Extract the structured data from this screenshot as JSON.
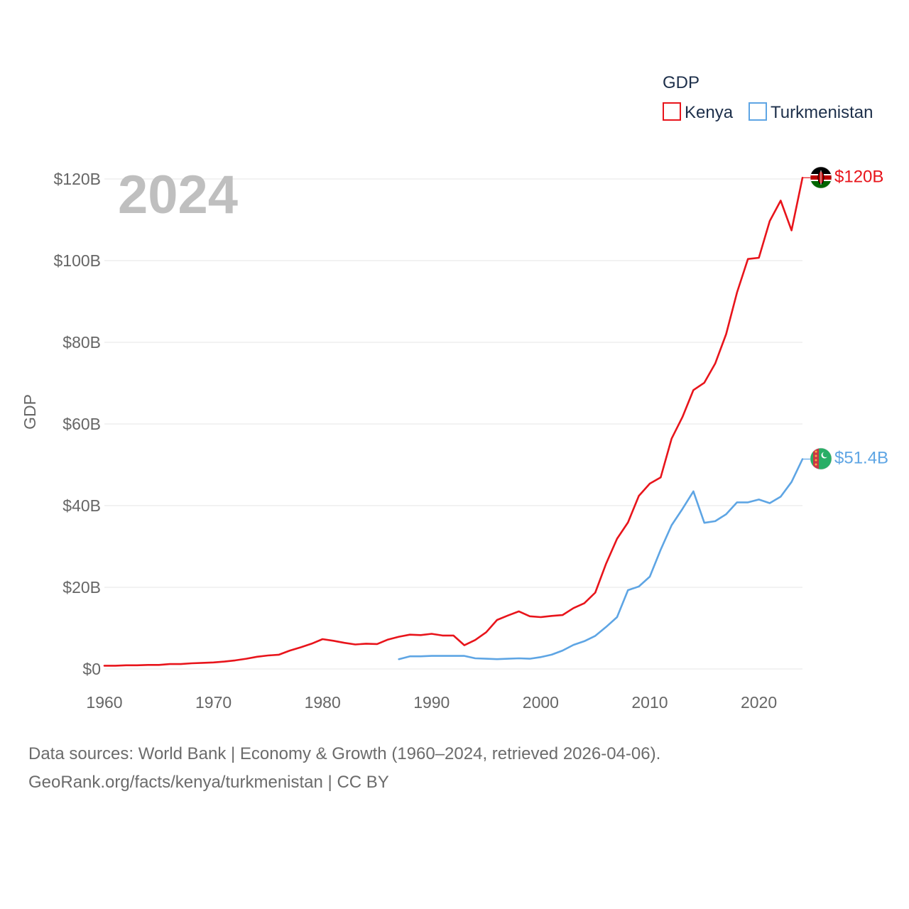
{
  "colors": {
    "kenya": "#e8141b",
    "turkmenistan": "#5ea5e4",
    "grid": "#e6e6e6",
    "axis_text": "#666666",
    "year_watermark": "#bfbfbf"
  },
  "legend": {
    "title": "GDP",
    "items": [
      {
        "name": "Kenya",
        "color": "#e8141b"
      },
      {
        "name": "Turkmenistan",
        "color": "#5ea5e4"
      }
    ]
  },
  "year_label": "2024",
  "source": {
    "line1": "Data sources: World Bank | Economy & Growth (1960–2024, retrieved 2026-04-06).",
    "line2": "GeoRank.org/facts/kenya/turkmenistan | CC BY"
  },
  "chart_data": {
    "type": "line",
    "title": "GDP",
    "xlabel": "",
    "ylabel": "GDP",
    "xlim": [
      1960,
      2024
    ],
    "ylim": [
      0,
      120
    ],
    "x_ticks": [
      1960,
      1970,
      1980,
      1990,
      2000,
      2010,
      2020
    ],
    "y_ticks": [
      0,
      20,
      40,
      60,
      80,
      100,
      120
    ],
    "y_tick_labels": [
      "$0",
      "$20B",
      "$40B",
      "$60B",
      "$80B",
      "$100B",
      "$120B"
    ],
    "units": "billions USD",
    "series": [
      {
        "name": "Kenya",
        "color": "#e8141b",
        "end_label": "$120B",
        "flag_icon": "kenya-flag-icon",
        "x": [
          1960,
          1961,
          1962,
          1963,
          1964,
          1965,
          1966,
          1967,
          1968,
          1969,
          1970,
          1971,
          1972,
          1973,
          1974,
          1975,
          1976,
          1977,
          1978,
          1979,
          1980,
          1981,
          1982,
          1983,
          1984,
          1985,
          1986,
          1987,
          1988,
          1989,
          1990,
          1991,
          1992,
          1993,
          1994,
          1995,
          1996,
          1997,
          1998,
          1999,
          2000,
          2001,
          2002,
          2003,
          2004,
          2005,
          2006,
          2007,
          2008,
          2009,
          2010,
          2011,
          2012,
          2013,
          2014,
          2015,
          2016,
          2017,
          2018,
          2019,
          2020,
          2021,
          2022,
          2023,
          2024
        ],
        "values": [
          0.8,
          0.8,
          0.9,
          0.9,
          1.0,
          1.0,
          1.2,
          1.2,
          1.4,
          1.5,
          1.6,
          1.8,
          2.1,
          2.5,
          3.0,
          3.3,
          3.5,
          4.5,
          5.3,
          6.2,
          7.3,
          6.9,
          6.4,
          6.0,
          6.2,
          6.1,
          7.2,
          7.9,
          8.4,
          8.3,
          8.6,
          8.2,
          8.2,
          5.8,
          7.1,
          9.0,
          12.0,
          13.1,
          14.1,
          12.9,
          12.7,
          13.0,
          13.2,
          14.9,
          16.1,
          18.7,
          25.8,
          31.9,
          35.9,
          42.4,
          45.4,
          46.9,
          56.4,
          61.7,
          68.3,
          70.1,
          74.8,
          82.0,
          92.2,
          100.4,
          100.7,
          109.7,
          114.7,
          107.4,
          120.3
        ]
      },
      {
        "name": "Turkmenistan",
        "color": "#5ea5e4",
        "end_label": "$51.4B",
        "flag_icon": "turkmenistan-flag-icon",
        "x": [
          1987,
          1988,
          1989,
          1990,
          1991,
          1992,
          1993,
          1994,
          1995,
          1996,
          1997,
          1998,
          1999,
          2000,
          2001,
          2002,
          2003,
          2004,
          2005,
          2006,
          2007,
          2008,
          2009,
          2010,
          2011,
          2012,
          2013,
          2014,
          2015,
          2016,
          2017,
          2018,
          2019,
          2020,
          2021,
          2022,
          2023,
          2024
        ],
        "values": [
          2.4,
          3.1,
          3.1,
          3.2,
          3.2,
          3.2,
          3.2,
          2.6,
          2.5,
          2.4,
          2.5,
          2.6,
          2.5,
          2.9,
          3.5,
          4.5,
          5.9,
          6.8,
          8.1,
          10.3,
          12.7,
          19.3,
          20.2,
          22.6,
          29.2,
          35.2,
          39.2,
          43.5,
          35.8,
          36.2,
          37.9,
          40.8,
          40.8,
          41.5,
          40.6,
          42.2,
          45.8,
          51.4
        ]
      }
    ]
  }
}
